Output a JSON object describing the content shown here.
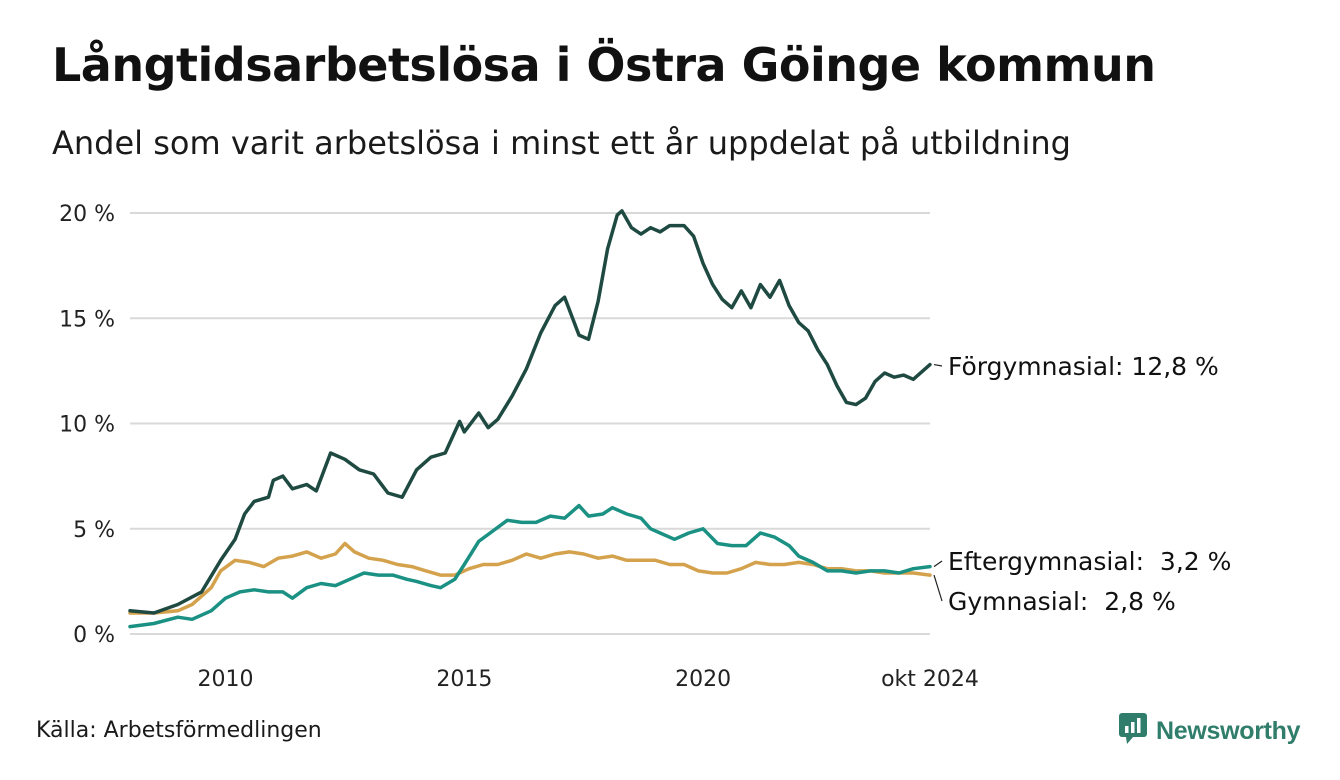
{
  "title": "Långtidsarbetslösa i Östra Göinge kommun",
  "subtitle": "Andel som varit arbetslösa i minst ett år uppdelat på utbildning",
  "source": "Källa: Arbetsförmedlingen",
  "brand": {
    "name": "Newsworthy",
    "color": "#2f7d6a",
    "icon": "newsworthy-logo-icon"
  },
  "chart_data": {
    "type": "line",
    "title": "Långtidsarbetslösa i Östra Göinge kommun",
    "ylim": [
      0,
      20
    ],
    "xlim": [
      2008.0,
      2024.75
    ],
    "grid": true,
    "y_ticks": [
      {
        "value": 0,
        "label": "0 %"
      },
      {
        "value": 5,
        "label": "5 %"
      },
      {
        "value": 10,
        "label": "10 %"
      },
      {
        "value": 15,
        "label": "15 %"
      },
      {
        "value": 20,
        "label": "20 %"
      }
    ],
    "x_ticks": [
      {
        "value": 2010,
        "label": "2010"
      },
      {
        "value": 2015,
        "label": "2015"
      },
      {
        "value": 2020,
        "label": "2020"
      },
      {
        "value": 2024.75,
        "label": "okt 2024"
      }
    ],
    "series": [
      {
        "name": "Förgymnasial",
        "end_label": "Förgymnasial: 12,8 %",
        "color": "#1f4a42",
        "points": [
          [
            2008.0,
            1.1
          ],
          [
            2008.5,
            1.0
          ],
          [
            2009.0,
            1.4
          ],
          [
            2009.5,
            2.0
          ],
          [
            2009.9,
            3.5
          ],
          [
            2010.2,
            4.5
          ],
          [
            2010.4,
            5.7
          ],
          [
            2010.6,
            6.3
          ],
          [
            2010.9,
            6.5
          ],
          [
            2011.0,
            7.3
          ],
          [
            2011.2,
            7.5
          ],
          [
            2011.4,
            6.9
          ],
          [
            2011.7,
            7.1
          ],
          [
            2011.9,
            6.8
          ],
          [
            2012.2,
            8.6
          ],
          [
            2012.5,
            8.3
          ],
          [
            2012.8,
            7.8
          ],
          [
            2013.1,
            7.6
          ],
          [
            2013.4,
            6.7
          ],
          [
            2013.7,
            6.5
          ],
          [
            2014.0,
            7.8
          ],
          [
            2014.3,
            8.4
          ],
          [
            2014.6,
            8.6
          ],
          [
            2014.9,
            10.1
          ],
          [
            2015.0,
            9.6
          ],
          [
            2015.3,
            10.5
          ],
          [
            2015.5,
            9.8
          ],
          [
            2015.7,
            10.2
          ],
          [
            2016.0,
            11.3
          ],
          [
            2016.3,
            12.6
          ],
          [
            2016.6,
            14.3
          ],
          [
            2016.9,
            15.6
          ],
          [
            2017.1,
            16.0
          ],
          [
            2017.4,
            14.2
          ],
          [
            2017.6,
            14.0
          ],
          [
            2017.8,
            15.8
          ],
          [
            2018.0,
            18.3
          ],
          [
            2018.2,
            19.9
          ],
          [
            2018.3,
            20.1
          ],
          [
            2018.5,
            19.3
          ],
          [
            2018.7,
            19.0
          ],
          [
            2018.9,
            19.3
          ],
          [
            2019.1,
            19.1
          ],
          [
            2019.3,
            19.4
          ],
          [
            2019.6,
            19.4
          ],
          [
            2019.8,
            18.9
          ],
          [
            2020.0,
            17.6
          ],
          [
            2020.2,
            16.6
          ],
          [
            2020.4,
            15.9
          ],
          [
            2020.6,
            15.5
          ],
          [
            2020.8,
            16.3
          ],
          [
            2021.0,
            15.5
          ],
          [
            2021.2,
            16.6
          ],
          [
            2021.4,
            16.0
          ],
          [
            2021.6,
            16.8
          ],
          [
            2021.8,
            15.6
          ],
          [
            2022.0,
            14.8
          ],
          [
            2022.2,
            14.4
          ],
          [
            2022.4,
            13.5
          ],
          [
            2022.6,
            12.8
          ],
          [
            2022.8,
            11.8
          ],
          [
            2023.0,
            11.0
          ],
          [
            2023.2,
            10.9
          ],
          [
            2023.4,
            11.2
          ],
          [
            2023.6,
            12.0
          ],
          [
            2023.8,
            12.4
          ],
          [
            2024.0,
            12.2
          ],
          [
            2024.2,
            12.3
          ],
          [
            2024.4,
            12.1
          ],
          [
            2024.6,
            12.5
          ],
          [
            2024.75,
            12.8
          ]
        ]
      },
      {
        "name": "Eftergymnasial",
        "end_label": "Eftergymnasial:  3,2 %",
        "color": "#1b9184",
        "points": [
          [
            2008.0,
            0.35
          ],
          [
            2008.5,
            0.5
          ],
          [
            2009.0,
            0.8
          ],
          [
            2009.3,
            0.7
          ],
          [
            2009.7,
            1.1
          ],
          [
            2010.0,
            1.7
          ],
          [
            2010.3,
            2.0
          ],
          [
            2010.6,
            2.1
          ],
          [
            2010.9,
            2.0
          ],
          [
            2011.2,
            2.0
          ],
          [
            2011.4,
            1.7
          ],
          [
            2011.7,
            2.2
          ],
          [
            2012.0,
            2.4
          ],
          [
            2012.3,
            2.3
          ],
          [
            2012.6,
            2.6
          ],
          [
            2012.9,
            2.9
          ],
          [
            2013.2,
            2.8
          ],
          [
            2013.5,
            2.8
          ],
          [
            2013.8,
            2.6
          ],
          [
            2014.0,
            2.5
          ],
          [
            2014.3,
            2.3
          ],
          [
            2014.5,
            2.2
          ],
          [
            2014.8,
            2.6
          ],
          [
            2015.0,
            3.3
          ],
          [
            2015.3,
            4.4
          ],
          [
            2015.6,
            4.9
          ],
          [
            2015.9,
            5.4
          ],
          [
            2016.2,
            5.3
          ],
          [
            2016.5,
            5.3
          ],
          [
            2016.8,
            5.6
          ],
          [
            2017.1,
            5.5
          ],
          [
            2017.4,
            6.1
          ],
          [
            2017.6,
            5.6
          ],
          [
            2017.9,
            5.7
          ],
          [
            2018.1,
            6.0
          ],
          [
            2018.4,
            5.7
          ],
          [
            2018.7,
            5.5
          ],
          [
            2018.9,
            5.0
          ],
          [
            2019.1,
            4.8
          ],
          [
            2019.4,
            4.5
          ],
          [
            2019.7,
            4.8
          ],
          [
            2020.0,
            5.0
          ],
          [
            2020.3,
            4.3
          ],
          [
            2020.6,
            4.2
          ],
          [
            2020.9,
            4.2
          ],
          [
            2021.2,
            4.8
          ],
          [
            2021.5,
            4.6
          ],
          [
            2021.8,
            4.2
          ],
          [
            2022.0,
            3.7
          ],
          [
            2022.3,
            3.4
          ],
          [
            2022.6,
            3.0
          ],
          [
            2022.9,
            3.0
          ],
          [
            2023.2,
            2.9
          ],
          [
            2023.5,
            3.0
          ],
          [
            2023.8,
            3.0
          ],
          [
            2024.1,
            2.9
          ],
          [
            2024.4,
            3.1
          ],
          [
            2024.75,
            3.2
          ]
        ]
      },
      {
        "name": "Gymnasial",
        "end_label": "Gymnasial:  2,8 %",
        "color": "#d4a24c",
        "points": [
          [
            2008.0,
            1.0
          ],
          [
            2008.5,
            1.0
          ],
          [
            2009.0,
            1.1
          ],
          [
            2009.3,
            1.4
          ],
          [
            2009.7,
            2.2
          ],
          [
            2009.9,
            3.0
          ],
          [
            2010.2,
            3.5
          ],
          [
            2010.5,
            3.4
          ],
          [
            2010.8,
            3.2
          ],
          [
            2011.1,
            3.6
          ],
          [
            2011.4,
            3.7
          ],
          [
            2011.7,
            3.9
          ],
          [
            2012.0,
            3.6
          ],
          [
            2012.3,
            3.8
          ],
          [
            2012.5,
            4.3
          ],
          [
            2012.7,
            3.9
          ],
          [
            2013.0,
            3.6
          ],
          [
            2013.3,
            3.5
          ],
          [
            2013.6,
            3.3
          ],
          [
            2013.9,
            3.2
          ],
          [
            2014.2,
            3.0
          ],
          [
            2014.5,
            2.8
          ],
          [
            2014.8,
            2.8
          ],
          [
            2015.1,
            3.1
          ],
          [
            2015.4,
            3.3
          ],
          [
            2015.7,
            3.3
          ],
          [
            2016.0,
            3.5
          ],
          [
            2016.3,
            3.8
          ],
          [
            2016.6,
            3.6
          ],
          [
            2016.9,
            3.8
          ],
          [
            2017.2,
            3.9
          ],
          [
            2017.5,
            3.8
          ],
          [
            2017.8,
            3.6
          ],
          [
            2018.1,
            3.7
          ],
          [
            2018.4,
            3.5
          ],
          [
            2018.7,
            3.5
          ],
          [
            2019.0,
            3.5
          ],
          [
            2019.3,
            3.3
          ],
          [
            2019.6,
            3.3
          ],
          [
            2019.9,
            3.0
          ],
          [
            2020.2,
            2.9
          ],
          [
            2020.5,
            2.9
          ],
          [
            2020.8,
            3.1
          ],
          [
            2021.1,
            3.4
          ],
          [
            2021.4,
            3.3
          ],
          [
            2021.7,
            3.3
          ],
          [
            2022.0,
            3.4
          ],
          [
            2022.3,
            3.3
          ],
          [
            2022.6,
            3.1
          ],
          [
            2022.9,
            3.1
          ],
          [
            2023.2,
            3.0
          ],
          [
            2023.5,
            3.0
          ],
          [
            2023.8,
            2.9
          ],
          [
            2024.1,
            2.9
          ],
          [
            2024.4,
            2.9
          ],
          [
            2024.75,
            2.8
          ]
        ]
      }
    ]
  }
}
